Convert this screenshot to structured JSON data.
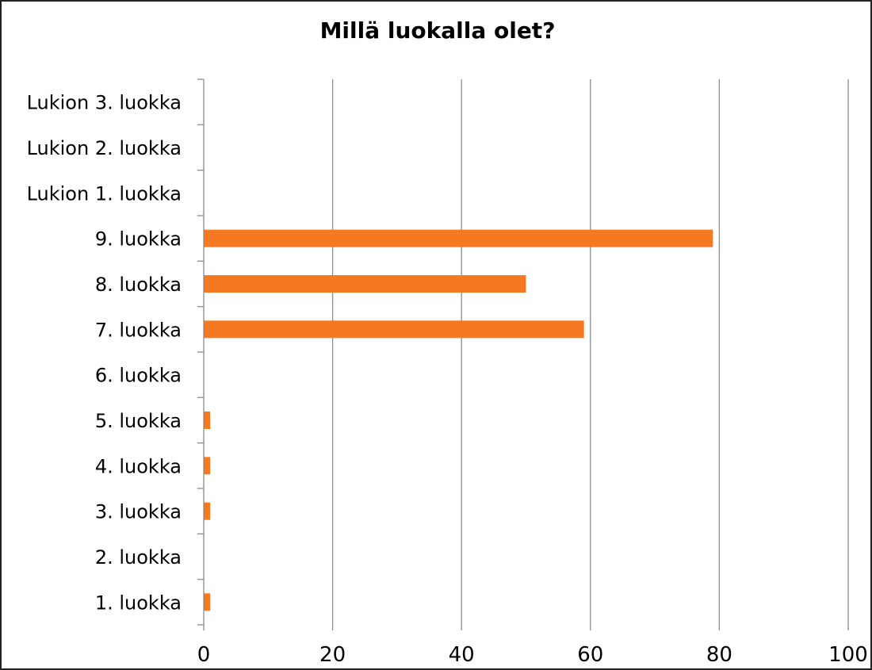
{
  "chart_data": {
    "type": "bar",
    "orientation": "horizontal",
    "title": "Millä luokalla olet?",
    "xlabel": "",
    "ylabel": "",
    "categories": [
      "1. luokka",
      "2. luokka",
      "3. luokka",
      "4. luokka",
      "5. luokka",
      "6. luokka",
      "7. luokka",
      "8. luokka",
      "9. luokka",
      "Lukion 1. luokka",
      "Lukion 2. luokka",
      "Lukion 3. luokka"
    ],
    "values": [
      1,
      0,
      1,
      1,
      1,
      0,
      59,
      50,
      79,
      0,
      0,
      0
    ],
    "xlim": [
      0,
      100
    ],
    "xticks": [
      0,
      20,
      40,
      60,
      80,
      100
    ],
    "grid": "vertical",
    "legend": "none",
    "bar_color": "#F47920"
  }
}
